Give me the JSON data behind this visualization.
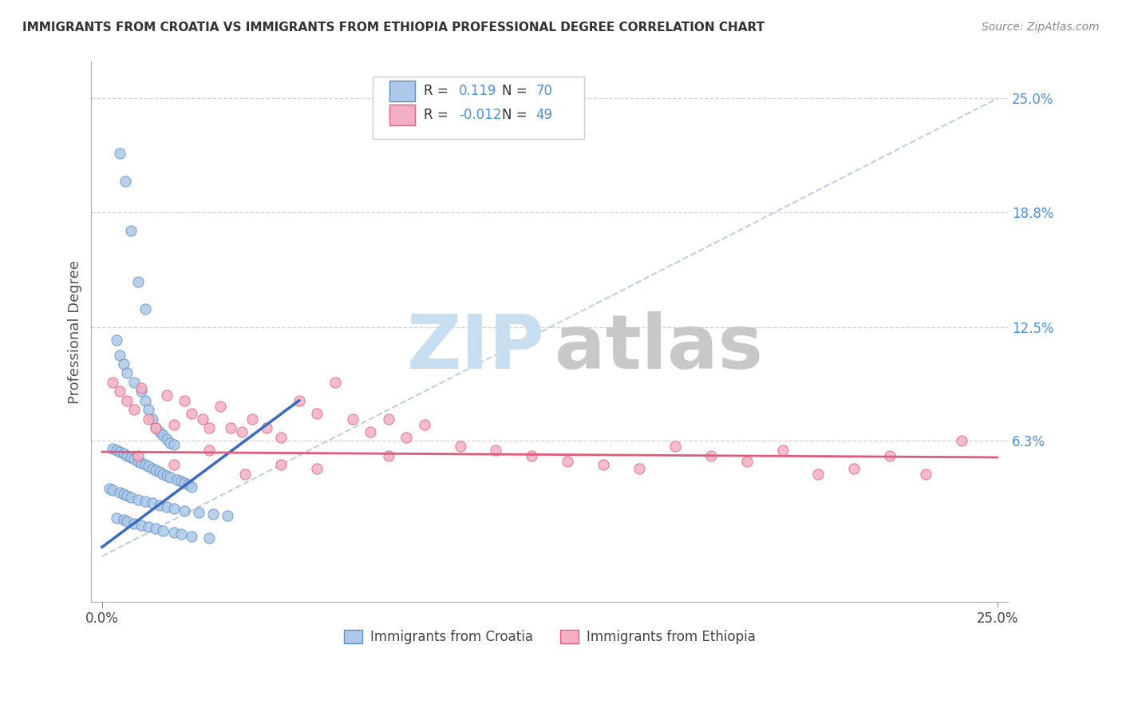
{
  "title": "IMMIGRANTS FROM CROATIA VS IMMIGRANTS FROM ETHIOPIA PROFESSIONAL DEGREE CORRELATION CHART",
  "source": "Source: ZipAtlas.com",
  "ylabel": "Professional Degree",
  "xlim": [
    -0.3,
    25.3
  ],
  "ylim": [
    -2.5,
    27.0
  ],
  "xtick_positions": [
    0,
    25
  ],
  "xtick_labels": [
    "0.0%",
    "25.0%"
  ],
  "ytick_positions": [
    6.3,
    12.5,
    18.8,
    25.0
  ],
  "ytick_labels": [
    "6.3%",
    "12.5%",
    "18.8%",
    "25.0%"
  ],
  "grid_yticks": [
    6.3,
    12.5,
    18.8,
    25.0
  ],
  "croatia_R": 0.119,
  "croatia_N": 70,
  "ethiopia_R": -0.012,
  "ethiopia_N": 49,
  "croatia_fill_color": "#adc8e8",
  "ethiopia_fill_color": "#f5afc5",
  "croatia_edge_color": "#5b8fc9",
  "ethiopia_edge_color": "#e0607a",
  "croatia_line_color": "#3a6bbf",
  "ethiopia_line_color": "#e05a7a",
  "grid_color": "#d0d0d0",
  "background_color": "#ffffff",
  "tick_color_right": "#4a90d9",
  "watermark_zip_color": "#c8dff2",
  "watermark_atlas_color": "#c8c8c8",
  "legend_box_color": "#cccccc",
  "scatter_size": 90,
  "croatia_line_x": [
    0,
    5.5
  ],
  "croatia_line_y": [
    0.5,
    8.5
  ],
  "ethiopia_line_x": [
    0,
    25
  ],
  "ethiopia_line_y": [
    5.7,
    5.4
  ],
  "diag_line_x": [
    0,
    25
  ],
  "diag_line_y": [
    0,
    25
  ],
  "croatia_x": [
    0.5,
    0.65,
    0.8,
    1.0,
    1.2,
    0.4,
    0.5,
    0.6,
    0.7,
    0.9,
    1.1,
    1.2,
    1.3,
    1.4,
    1.5,
    1.6,
    1.7,
    1.8,
    1.9,
    2.0,
    0.3,
    0.4,
    0.5,
    0.6,
    0.7,
    0.8,
    0.9,
    1.0,
    1.1,
    1.2,
    1.3,
    1.4,
    1.5,
    1.6,
    1.7,
    1.8,
    1.9,
    2.1,
    2.2,
    2.3,
    2.4,
    2.5,
    0.2,
    0.3,
    0.5,
    0.6,
    0.7,
    0.8,
    1.0,
    1.2,
    1.4,
    1.6,
    1.8,
    2.0,
    2.3,
    2.7,
    3.1,
    3.5,
    0.4,
    0.6,
    0.7,
    0.9,
    1.1,
    1.3,
    1.5,
    1.7,
    2.0,
    2.2,
    2.5,
    3.0
  ],
  "croatia_y": [
    22.0,
    20.5,
    17.8,
    15.0,
    13.5,
    11.8,
    11.0,
    10.5,
    10.0,
    9.5,
    9.0,
    8.5,
    8.0,
    7.5,
    7.0,
    6.8,
    6.6,
    6.4,
    6.2,
    6.1,
    5.9,
    5.8,
    5.7,
    5.6,
    5.5,
    5.4,
    5.3,
    5.2,
    5.1,
    5.0,
    4.9,
    4.8,
    4.7,
    4.6,
    4.5,
    4.4,
    4.3,
    4.2,
    4.1,
    4.0,
    3.9,
    3.8,
    3.7,
    3.6,
    3.5,
    3.4,
    3.3,
    3.2,
    3.1,
    3.0,
    2.9,
    2.8,
    2.7,
    2.6,
    2.5,
    2.4,
    2.3,
    2.2,
    2.1,
    2.0,
    1.9,
    1.8,
    1.7,
    1.6,
    1.5,
    1.4,
    1.3,
    1.2,
    1.1,
    1.0
  ],
  "ethiopia_x": [
    0.3,
    0.5,
    0.7,
    0.9,
    1.1,
    1.3,
    1.5,
    1.8,
    2.0,
    2.3,
    2.5,
    2.8,
    3.0,
    3.3,
    3.6,
    3.9,
    4.2,
    4.6,
    5.0,
    5.5,
    6.0,
    6.5,
    7.0,
    7.5,
    8.0,
    8.5,
    9.0,
    10.0,
    11.0,
    12.0,
    13.0,
    14.0,
    15.0,
    16.0,
    17.0,
    18.0,
    19.0,
    20.0,
    21.0,
    22.0,
    23.0,
    24.0,
    1.0,
    2.0,
    3.0,
    4.0,
    5.0,
    6.0,
    8.0
  ],
  "ethiopia_y": [
    9.5,
    9.0,
    8.5,
    8.0,
    9.2,
    7.5,
    7.0,
    8.8,
    7.2,
    8.5,
    7.8,
    7.5,
    7.0,
    8.2,
    7.0,
    6.8,
    7.5,
    7.0,
    6.5,
    8.5,
    7.8,
    9.5,
    7.5,
    6.8,
    7.5,
    6.5,
    7.2,
    6.0,
    5.8,
    5.5,
    5.2,
    5.0,
    4.8,
    6.0,
    5.5,
    5.2,
    5.8,
    4.5,
    4.8,
    5.5,
    4.5,
    6.3,
    5.5,
    5.0,
    5.8,
    4.5,
    5.0,
    4.8,
    5.5
  ]
}
